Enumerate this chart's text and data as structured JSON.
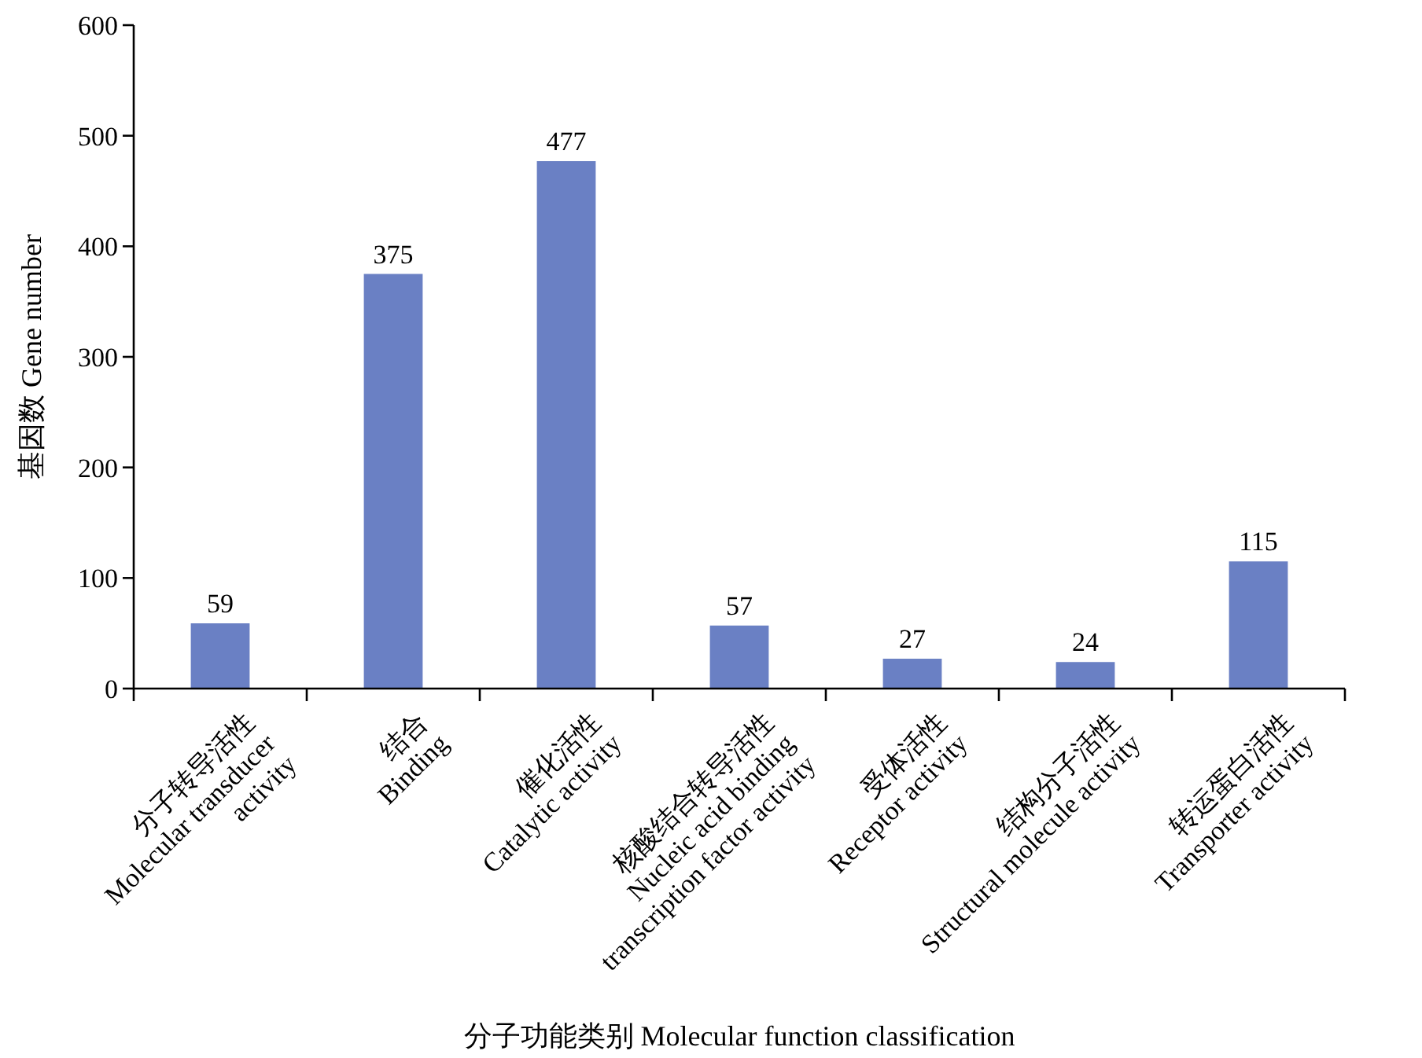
{
  "chart_data": {
    "type": "bar",
    "xlabel": "分子功能类别 Molecular function classification",
    "ylabel": "基因数 Gene number",
    "categories": [
      "分子转导活性\nMolecular transducer\nactivity",
      "结合\nBinding",
      "催化活性\nCatalytic activity",
      "核酸结合转导活性\nNucleic acid binding\ntranscription factor activity",
      "受体活性\nReceptor activity",
      "结构分子活性\nStructural molecule activity",
      "转运蛋白活性\nTransporter activity"
    ],
    "values": [
      59,
      375,
      477,
      57,
      27,
      24,
      115
    ],
    "color": "#6a80c4",
    "ylim": [
      0,
      600
    ],
    "yticks": [
      0,
      100,
      200,
      300,
      400,
      500,
      600
    ],
    "data_labels": true,
    "grid": false
  }
}
